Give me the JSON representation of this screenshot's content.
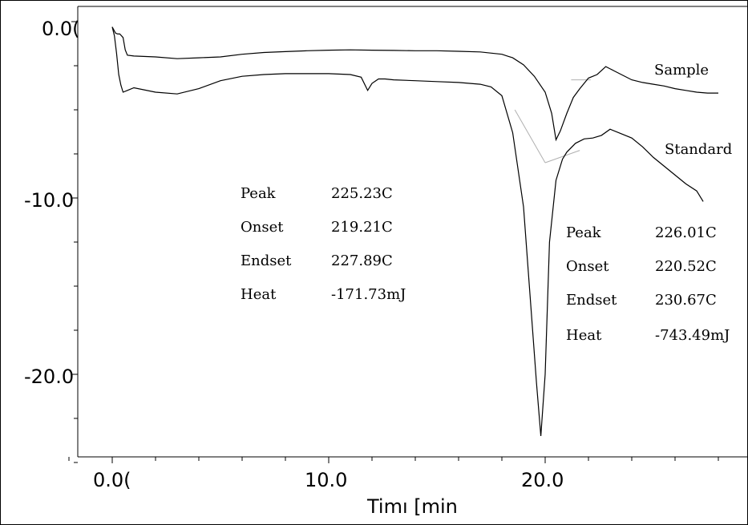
{
  "chart_data": {
    "type": "line",
    "title": "",
    "xlabel": "Timı [min",
    "ylabel": "",
    "xlim": [
      -2.0,
      36.0
    ],
    "ylim": [
      -25.0,
      1.2
    ],
    "x_ticks": [
      {
        "value": 0.0,
        "label": "0.0("
      },
      {
        "value": 10.0,
        "label": "10.0"
      },
      {
        "value": 20.0,
        "label": "20.0"
      }
    ],
    "y_ticks": [
      {
        "value": 0.0,
        "label": "0.0("
      },
      {
        "value": -10.0,
        "label": "-10.0"
      },
      {
        "value": -20.0,
        "label": "-20.0"
      }
    ],
    "grid": false,
    "series": [
      {
        "name": "Sample",
        "x": [
          0.0,
          0.15,
          0.25,
          0.35,
          0.5,
          0.6,
          0.7,
          1.0,
          2.0,
          3.0,
          4.0,
          5.0,
          6.0,
          7.0,
          8.0,
          9.0,
          10.0,
          11.0,
          12.0,
          13.0,
          14.0,
          15.0,
          16.0,
          17.0,
          18.0,
          18.5,
          19.0,
          19.5,
          20.0,
          20.3,
          20.5,
          20.7,
          21.0,
          21.3,
          21.6,
          22.0,
          22.4,
          22.8,
          23.2,
          23.6,
          24.0,
          24.5,
          25.0,
          25.5,
          26.0,
          26.5,
          27.0,
          27.5,
          28.0
        ],
        "y": [
          -0.3,
          -0.65,
          -0.7,
          -0.7,
          -0.9,
          -1.6,
          -1.9,
          -1.95,
          -2.0,
          -2.1,
          -2.05,
          -2.0,
          -1.85,
          -1.75,
          -1.7,
          -1.65,
          -1.62,
          -1.6,
          -1.62,
          -1.63,
          -1.65,
          -1.65,
          -1.68,
          -1.72,
          -1.85,
          -2.05,
          -2.45,
          -3.1,
          -4.0,
          -5.2,
          -6.7,
          -6.2,
          -5.2,
          -4.3,
          -3.8,
          -3.2,
          -3.0,
          -2.55,
          -2.8,
          -3.05,
          -3.3,
          -3.45,
          -3.55,
          -3.65,
          -3.8,
          -3.9,
          -4.0,
          -4.05,
          -4.05
        ]
      },
      {
        "name": "Standard",
        "x": [
          0.0,
          0.1,
          0.2,
          0.3,
          0.4,
          0.5,
          0.7,
          1.0,
          2.0,
          3.0,
          4.0,
          5.0,
          6.0,
          7.0,
          8.0,
          9.0,
          10.0,
          11.0,
          11.5,
          11.8,
          12.0,
          12.3,
          12.6,
          13.0,
          14.0,
          15.0,
          16.0,
          17.0,
          17.5,
          18.0,
          18.5,
          19.0,
          19.3,
          19.6,
          19.8,
          20.0,
          20.2,
          20.5,
          20.8,
          21.0,
          21.4,
          21.8,
          22.2,
          22.6,
          23.0,
          23.5,
          24.0,
          24.5,
          25.0,
          25.5,
          26.0,
          26.5,
          27.0,
          27.3
        ],
        "y": [
          -0.3,
          -0.8,
          -1.8,
          -3.0,
          -3.6,
          -4.0,
          -3.9,
          -3.75,
          -4.0,
          -4.1,
          -3.8,
          -3.35,
          -3.1,
          -3.0,
          -2.95,
          -2.95,
          -2.95,
          -3.0,
          -3.15,
          -3.9,
          -3.5,
          -3.25,
          -3.25,
          -3.3,
          -3.35,
          -3.4,
          -3.45,
          -3.55,
          -3.7,
          -4.2,
          -6.3,
          -10.5,
          -15.5,
          -20.5,
          -23.5,
          -20.0,
          -12.5,
          -9.0,
          -7.8,
          -7.4,
          -6.9,
          -6.65,
          -6.6,
          -6.45,
          -6.1,
          -6.35,
          -6.6,
          -7.1,
          -7.7,
          -8.2,
          -8.7,
          -9.2,
          -9.6,
          -10.2
        ]
      }
    ],
    "baselines": [
      {
        "x": [
          21.2,
          22.1
        ],
        "y": [
          -3.3,
          -3.3
        ]
      },
      {
        "x": [
          18.6,
          20.0
        ],
        "y": [
          -5.0,
          -8.0
        ]
      },
      {
        "x": [
          20.0,
          21.6
        ],
        "y": [
          -8.0,
          -7.3
        ]
      }
    ],
    "annotations": [
      {
        "label": "Sample"
      },
      {
        "label": "Standard"
      }
    ],
    "tables": [
      {
        "rows": [
          {
            "label": "Peak",
            "value": "225.23C"
          },
          {
            "label": "Onset",
            "value": "219.21C"
          },
          {
            "label": "Endset",
            "value": "227.89C"
          },
          {
            "label": "Heat",
            "value": "-171.73mJ"
          }
        ]
      },
      {
        "rows": [
          {
            "label": "Peak",
            "value": "226.01C"
          },
          {
            "label": "Onset",
            "value": "220.52C"
          },
          {
            "label": "Endset",
            "value": "230.67C"
          },
          {
            "label": "Heat",
            "value": "-743.49mJ"
          }
        ]
      }
    ]
  }
}
